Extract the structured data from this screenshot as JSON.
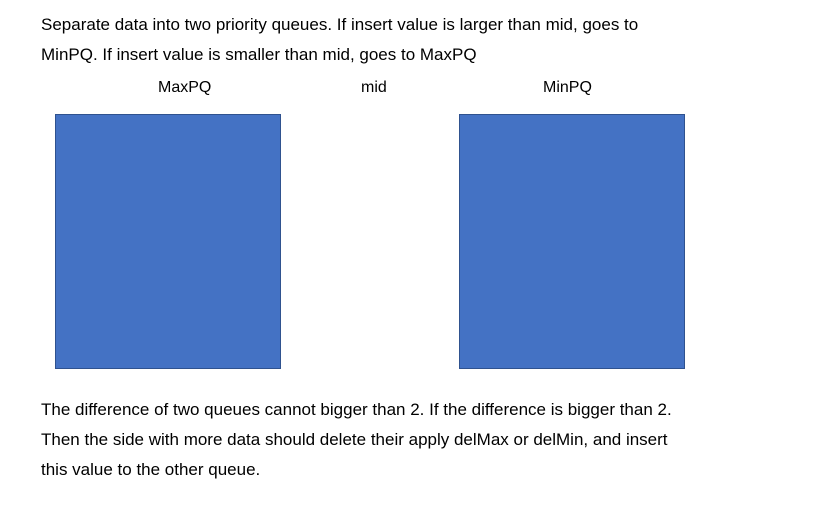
{
  "intro": {
    "line1": "Separate data into two priority queues. If insert value is larger than mid, goes to",
    "line2": "MinPQ. If insert value is smaller than mid, goes to MaxPQ"
  },
  "labels": {
    "max_pq": "MaxPQ",
    "mid": "mid",
    "min_pq": "MinPQ"
  },
  "colors": {
    "queue_fill": "#4472c4",
    "queue_border": "#2f528f"
  },
  "note": {
    "line1": "The difference of two queues cannot bigger than 2. If the difference is bigger than 2.",
    "line2": "Then the side with more data should delete their apply delMax or delMin, and insert",
    "line3": "this value to the other queue."
  }
}
